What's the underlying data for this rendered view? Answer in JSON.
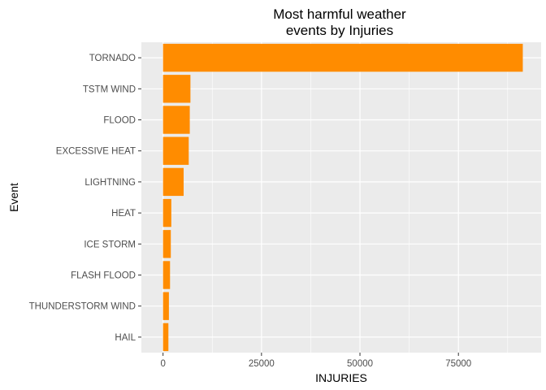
{
  "chart_data": {
    "type": "bar",
    "orientation": "horizontal",
    "title": "Most harmful weather\nevents by Injuries",
    "xlabel": "INJURIES",
    "ylabel": "Event",
    "categories": [
      "TORNADO",
      "TSTM WIND",
      "FLOOD",
      "EXCESSIVE HEAT",
      "LIGHTNING",
      "HEAT",
      "ICE STORM",
      "FLASH FLOOD",
      "THUNDERSTORM WIND",
      "HAIL"
    ],
    "values": [
      91346,
      6957,
      6789,
      6525,
      5230,
      2100,
      1975,
      1777,
      1488,
      1361
    ],
    "xlim": [
      -5500,
      96000
    ],
    "xticks": [
      0,
      25000,
      50000,
      75000
    ],
    "grid": true,
    "legend": "none",
    "bar_color": "#FF8C00",
    "panel_color": "#EBEBEB",
    "grid_color": "#FFFFFF"
  }
}
